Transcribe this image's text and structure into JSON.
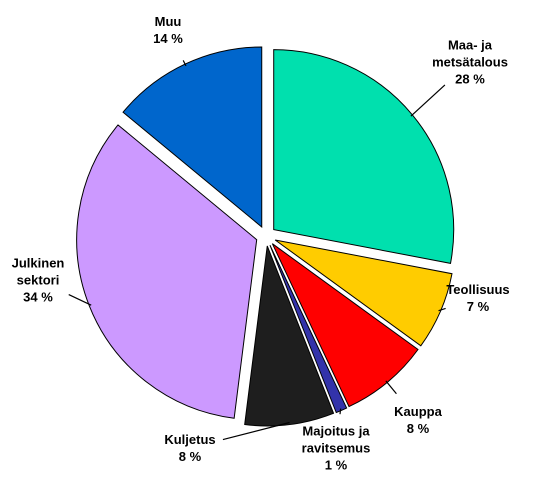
{
  "chart_data": {
    "type": "pie",
    "categories": [
      "Maa- ja\nmetsätalous",
      "Teollisuus",
      "Kauppa",
      "Majoitus ja\nravitsemus",
      "Kuljetus",
      "Julkinen\nsektori",
      "Muu"
    ],
    "values": [
      28,
      7,
      8,
      1,
      8,
      34,
      14
    ],
    "value_labels": [
      "28 %",
      "7 %",
      "8 %",
      "1 %",
      "8 %",
      "34 %",
      "14 %"
    ],
    "colors": [
      "#00e0ae",
      "#ffcc00",
      "#ff0000",
      "#3333aa",
      "#1e1e1e",
      "#cc99ff",
      "#0066cc"
    ]
  }
}
